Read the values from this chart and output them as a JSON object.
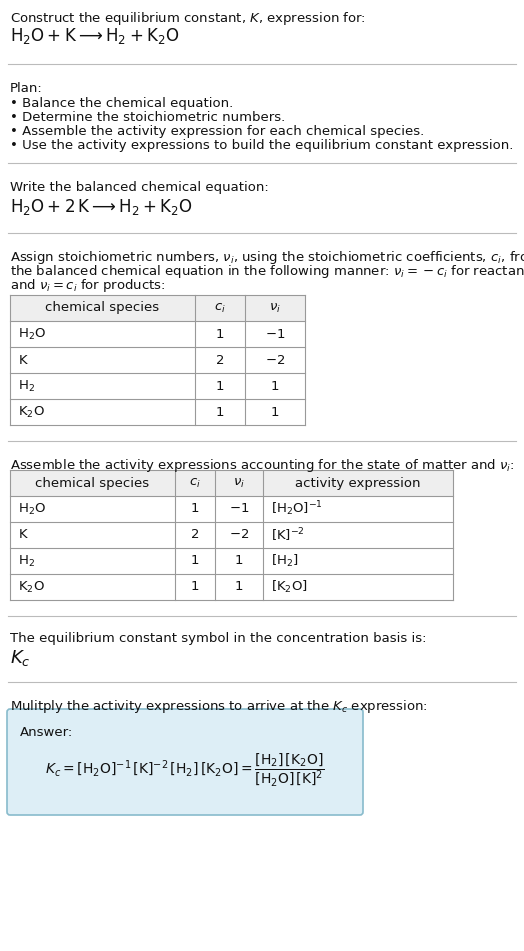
{
  "title_line1": "Construct the equilibrium constant, $K$, expression for:",
  "title_line2": "$\\mathrm{H_2O + K} \\longrightarrow \\mathrm{H_2 + K_2O}$",
  "plan_header": "Plan:",
  "plan_bullets": [
    "• Balance the chemical equation.",
    "• Determine the stoichiometric numbers.",
    "• Assemble the activity expression for each chemical species.",
    "• Use the activity expressions to build the equilibrium constant expression."
  ],
  "balanced_eq_header": "Write the balanced chemical equation:",
  "balanced_eq": "$\\mathrm{H_2O + 2\\,K} \\longrightarrow \\mathrm{H_2 + K_2O}$",
  "stoich_intro_lines": [
    "Assign stoichiometric numbers, $\\nu_i$, using the stoichiometric coefficients, $c_i$, from",
    "the balanced chemical equation in the following manner: $\\nu_i = -c_i$ for reactants",
    "and $\\nu_i = c_i$ for products:"
  ],
  "table1_headers": [
    "chemical species",
    "$c_i$",
    "$\\nu_i$"
  ],
  "table1_rows": [
    [
      "$\\mathrm{H_2O}$",
      "1",
      "$-1$"
    ],
    [
      "$\\mathrm{K}$",
      "2",
      "$-2$"
    ],
    [
      "$\\mathrm{H_2}$",
      "1",
      "1"
    ],
    [
      "$\\mathrm{K_2O}$",
      "1",
      "1"
    ]
  ],
  "activity_intro": "Assemble the activity expressions accounting for the state of matter and $\\nu_i$:",
  "table2_headers": [
    "chemical species",
    "$c_i$",
    "$\\nu_i$",
    "activity expression"
  ],
  "table2_rows": [
    [
      "$\\mathrm{H_2O}$",
      "1",
      "$-1$",
      "$[\\mathrm{H_2O}]^{-1}$"
    ],
    [
      "$\\mathrm{K}$",
      "2",
      "$-2$",
      "$[\\mathrm{K}]^{-2}$"
    ],
    [
      "$\\mathrm{H_2}$",
      "1",
      "1",
      "$[\\mathrm{H_2}]$"
    ],
    [
      "$\\mathrm{K_2O}$",
      "1",
      "1",
      "$[\\mathrm{K_2O}]$"
    ]
  ],
  "kc_text": "The equilibrium constant symbol in the concentration basis is:",
  "kc_symbol": "$K_c$",
  "multiply_text": "Mulitply the activity expressions to arrive at the $K_c$ expression:",
  "answer_label": "Answer:",
  "answer_eq_line": "$K_c = [\\mathrm{H_2O}]^{-1}\\,[\\mathrm{K}]^{-2}\\,[\\mathrm{H_2}]\\,[\\mathrm{K_2O}] = \\dfrac{[\\mathrm{H_2}]\\,[\\mathrm{K_2O}]}{[\\mathrm{H_2O}]\\,[\\mathrm{K}]^2}$",
  "bg_color": "#ffffff",
  "table_header_bg": "#eeeeee",
  "table_border_color": "#999999",
  "answer_box_bg": "#ddeef6",
  "answer_box_border": "#88bbcc",
  "text_color": "#111111",
  "sep_color": "#bbbbbb",
  "fs": 9.5,
  "fs_big": 12.0,
  "fs_kc": 13.0
}
